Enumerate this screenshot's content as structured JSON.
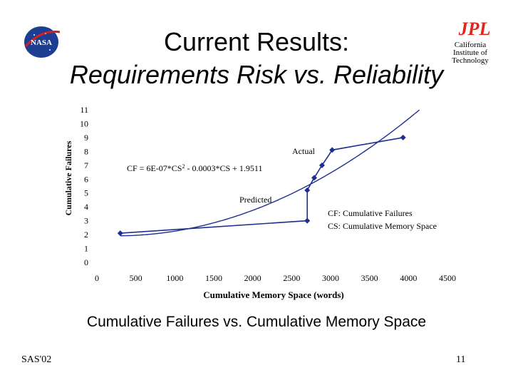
{
  "header": {
    "title_line1": "Current Results:",
    "title_line2": "Requirements Risk vs. Reliability",
    "nasa_logo_text": "NASA",
    "jpl_logo_text": "JPL",
    "institution_line1": "California",
    "institution_line2": "Institute of",
    "institution_line3": "Technology",
    "colors": {
      "jpl_red": "#e3261c",
      "nasa_blue": "#1c3f94"
    }
  },
  "chart_data": {
    "type": "scatter",
    "title": "",
    "xlabel": "Cumulative Memory Space (words)",
    "ylabel": "Cumulative Failures",
    "xlim": [
      0,
      4500
    ],
    "ylim": [
      0,
      11
    ],
    "x_ticks": [
      "0",
      "500",
      "1000",
      "1500",
      "2000",
      "2500",
      "3000",
      "3500",
      "4000",
      "4500"
    ],
    "y_ticks": [
      "0",
      "1",
      "2",
      "3",
      "4",
      "5",
      "6",
      "7",
      "8",
      "9",
      "10",
      "11"
    ],
    "series": [
      {
        "name": "Actual",
        "color": "#1f2f8f",
        "points": [
          [
            300,
            2.1
          ],
          [
            2700,
            3.0
          ],
          [
            2700,
            5.2
          ],
          [
            2790,
            6.1
          ],
          [
            2890,
            7.0
          ],
          [
            3020,
            8.1
          ],
          [
            3930,
            9.0
          ]
        ]
      },
      {
        "name": "Predicted",
        "color": "#1f2f8f",
        "fit": {
          "a": 6e-07,
          "b": -0.0003,
          "c": 1.9511
        }
      }
    ],
    "annotations": {
      "actual_label": "Actual",
      "predicted_label": "Predicted",
      "equation_prefix": "CF = 6E-07*CS",
      "equation_exponent": "2",
      "equation_suffix": " - 0.0003*CS + 1.9511",
      "legend_cf": "CF: Cumulative Failures",
      "legend_cs": "CS: Cumulative Memory Space"
    }
  },
  "caption": "Cumulative Failures vs. Cumulative Memory Space",
  "footer": {
    "left": "SAS'02",
    "right": "11"
  }
}
